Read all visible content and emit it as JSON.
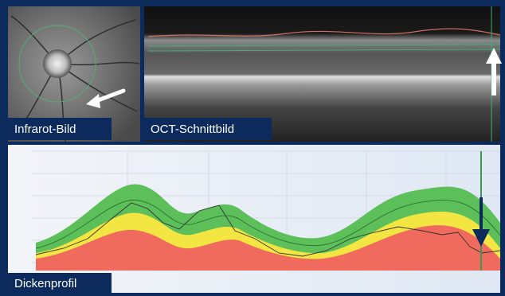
{
  "panels": [
    {
      "label": "Infrarot-Bild"
    },
    {
      "label": "OCT-Schnittbild"
    },
    {
      "label": "Dickenprofil"
    }
  ]
}
